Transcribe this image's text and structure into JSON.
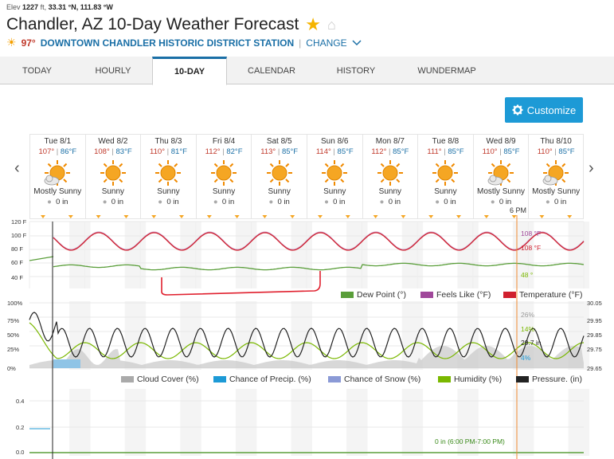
{
  "header": {
    "elev_label": "Elev",
    "elev_value": "1227",
    "elev_unit": "ft,",
    "lat": "33.31 °N,",
    "lon": "111.83 °W",
    "title": "Chandler, AZ 10-Day Weather Forecast",
    "current_temp": "97°",
    "station": "DOWNTOWN CHANDLER HISTORIC DISTRICT STATION",
    "separator": "|",
    "change": "CHANGE"
  },
  "tabs": [
    {
      "label": "TODAY",
      "active": false
    },
    {
      "label": "HOURLY",
      "active": false
    },
    {
      "label": "10-DAY",
      "active": true
    },
    {
      "label": "CALENDAR",
      "active": false
    },
    {
      "label": "HISTORY",
      "active": false
    },
    {
      "label": "WUNDERMAP",
      "active": false
    }
  ],
  "customize_label": "Customize",
  "days": [
    {
      "name": "Tue 8/1",
      "hi": "107°",
      "lo": "86°F",
      "cond": "Mostly Sunny",
      "precip": "0 in",
      "icon": "mostly-sunny"
    },
    {
      "name": "Wed 8/2",
      "hi": "108°",
      "lo": "83°F",
      "cond": "Sunny",
      "precip": "0 in",
      "icon": "sunny"
    },
    {
      "name": "Thu 8/3",
      "hi": "110°",
      "lo": "81°F",
      "cond": "Sunny",
      "precip": "0 in",
      "icon": "sunny"
    },
    {
      "name": "Fri 8/4",
      "hi": "112°",
      "lo": "82°F",
      "cond": "Sunny",
      "precip": "0 in",
      "icon": "sunny"
    },
    {
      "name": "Sat 8/5",
      "hi": "113°",
      "lo": "85°F",
      "cond": "Sunny",
      "precip": "0 in",
      "icon": "sunny"
    },
    {
      "name": "Sun 8/6",
      "hi": "114°",
      "lo": "85°F",
      "cond": "Sunny",
      "precip": "0 in",
      "icon": "sunny"
    },
    {
      "name": "Mon 8/7",
      "hi": "112°",
      "lo": "85°F",
      "cond": "Sunny",
      "precip": "0 in",
      "icon": "sunny"
    },
    {
      "name": "Tue 8/8",
      "hi": "111°",
      "lo": "85°F",
      "cond": "Sunny",
      "precip": "0 in",
      "icon": "sunny"
    },
    {
      "name": "Wed 8/9",
      "hi": "110°",
      "lo": "85°F",
      "cond": "Mostly Sunny",
      "precip": "0 in",
      "icon": "mostly-sunny"
    },
    {
      "name": "Thu 8/10",
      "hi": "110°",
      "lo": "85°F",
      "cond": "Mostly Sunny",
      "precip": "0 in",
      "icon": "mostly-sunny"
    }
  ],
  "hover_time": "6 PM",
  "temp_chart": {
    "y_ticks": [
      "120 F",
      "100 F",
      "80 F",
      "60 F",
      "40 F"
    ],
    "legend": [
      {
        "label": "Dew Point (°)",
        "color": "#5a9e3a"
      },
      {
        "label": "Feels Like (°F)",
        "color": "#a0489a"
      },
      {
        "label": "Temperature (°F)",
        "color": "#d0202e"
      }
    ],
    "tooltip": {
      "feels": "108 °F",
      "temp": "108 °F",
      "dew": "48 °"
    }
  },
  "humid_chart": {
    "y_ticks_left": [
      "100%",
      "75%",
      "50%",
      "25%",
      "0%"
    ],
    "y_ticks_right": [
      "30.05",
      "29.95",
      "29.85",
      "29.75",
      "29.65"
    ],
    "legend": [
      {
        "label": "Cloud Cover (%)",
        "color": "#aaaaaa"
      },
      {
        "label": "Chance of Precip. (%)",
        "color": "#1d9ad6"
      },
      {
        "label": "Chance of Snow (%)",
        "color": "#8b9ad6"
      },
      {
        "label": "Humidity (%)",
        "color": "#7ab800"
      },
      {
        "label": "Pressure. (in)",
        "color": "#222222"
      }
    ],
    "tooltip": {
      "cloud": "26%",
      "humidity": "14%",
      "pressure": "29.7 in",
      "precip": "4%"
    }
  },
  "precip_chart": {
    "y_ticks": [
      "0.4",
      "0.2",
      "0.0"
    ],
    "tooltip": "0 in (6:00 PM-7:00 PM)"
  },
  "colors": {
    "accent": "#1a6fa6",
    "button": "#1d9ad6",
    "annotation": "#e0202e"
  }
}
